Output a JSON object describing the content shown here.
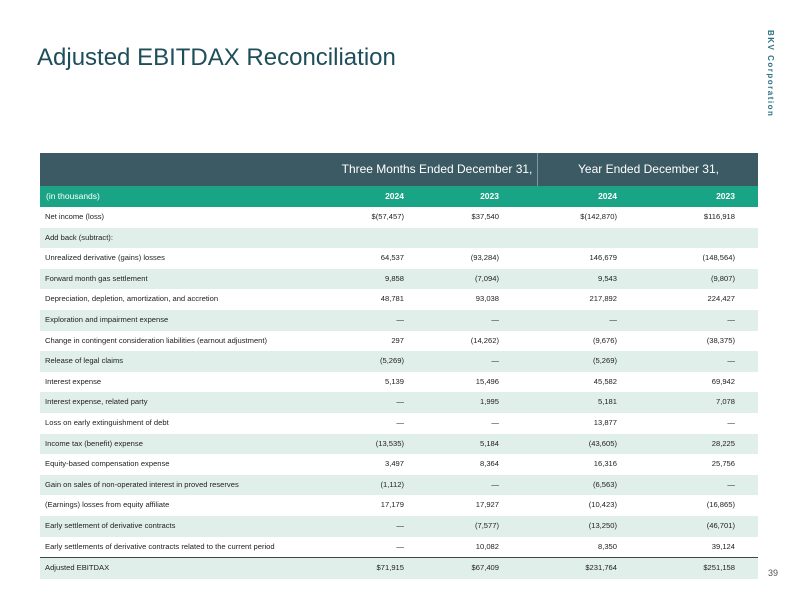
{
  "title": "Adjusted EBITDAX Reconciliation",
  "brand": "BKV Corporation",
  "page_number": "39",
  "table": {
    "group_headers": [
      "Three Months Ended December 31,",
      "Year Ended December 31,"
    ],
    "units_label": "(in thousands)",
    "columns": [
      "2024",
      "2023",
      "2024",
      "2023"
    ],
    "rows": [
      {
        "label": "Net income (loss)",
        "values": [
          "$(57,457)",
          "$37,540",
          "$(142,870)",
          "$116,918"
        ]
      },
      {
        "label": "Add back (subtract):",
        "values": [
          "",
          "",
          "",
          ""
        ]
      },
      {
        "label": "Unrealized derivative (gains) losses",
        "values": [
          "64,537",
          "(93,284)",
          "146,679",
          "(148,564)"
        ]
      },
      {
        "label": "Forward month gas settlement",
        "values": [
          "9,858",
          "(7,094)",
          "9,543",
          "(9,807)"
        ]
      },
      {
        "label": "Depreciation, depletion, amortization, and accretion",
        "values": [
          "48,781",
          "93,038",
          "217,892",
          "224,427"
        ]
      },
      {
        "label": "Exploration and impairment expense",
        "values": [
          "—",
          "—",
          "—",
          "—"
        ]
      },
      {
        "label": "Change in contingent consideration liabilities (earnout adjustment)",
        "values": [
          "297",
          "(14,262)",
          "(9,676)",
          "(38,375)"
        ]
      },
      {
        "label": "Release of legal claims",
        "values": [
          "(5,269)",
          "—",
          "(5,269)",
          "—"
        ]
      },
      {
        "label": "Interest expense",
        "values": [
          "5,139",
          "15,496",
          "45,582",
          "69,942"
        ]
      },
      {
        "label": "Interest expense, related party",
        "values": [
          "—",
          "1,995",
          "5,181",
          "7,078"
        ]
      },
      {
        "label": "Loss on early extinguishment of debt",
        "values": [
          "—",
          "—",
          "13,877",
          "—"
        ]
      },
      {
        "label": "Income tax (benefit) expense",
        "values": [
          "(13,535)",
          "5,184",
          "(43,605)",
          "28,225"
        ]
      },
      {
        "label": "Equity-based compensation expense",
        "values": [
          "3,497",
          "8,364",
          "16,316",
          "25,756"
        ]
      },
      {
        "label": "Gain on sales of non-operated interest in proved reserves",
        "values": [
          "(1,112)",
          "—",
          "(6,563)",
          "—"
        ]
      },
      {
        "label": "(Earnings) losses from equity affiliate",
        "values": [
          "17,179",
          "17,927",
          "(10,423)",
          "(16,865)"
        ]
      },
      {
        "label": "Early settlement of derivative contracts",
        "values": [
          "—",
          "(7,577)",
          "(13,250)",
          "(46,701)"
        ]
      },
      {
        "label": "Early settlements of derivative contracts related to the current period",
        "values": [
          "—",
          "10,082",
          "8,350",
          "39,124"
        ]
      },
      {
        "label": "Adjusted EBITDAX",
        "values": [
          "$71,915",
          "$67,409",
          "$231,764",
          "$251,158"
        ]
      }
    ]
  }
}
